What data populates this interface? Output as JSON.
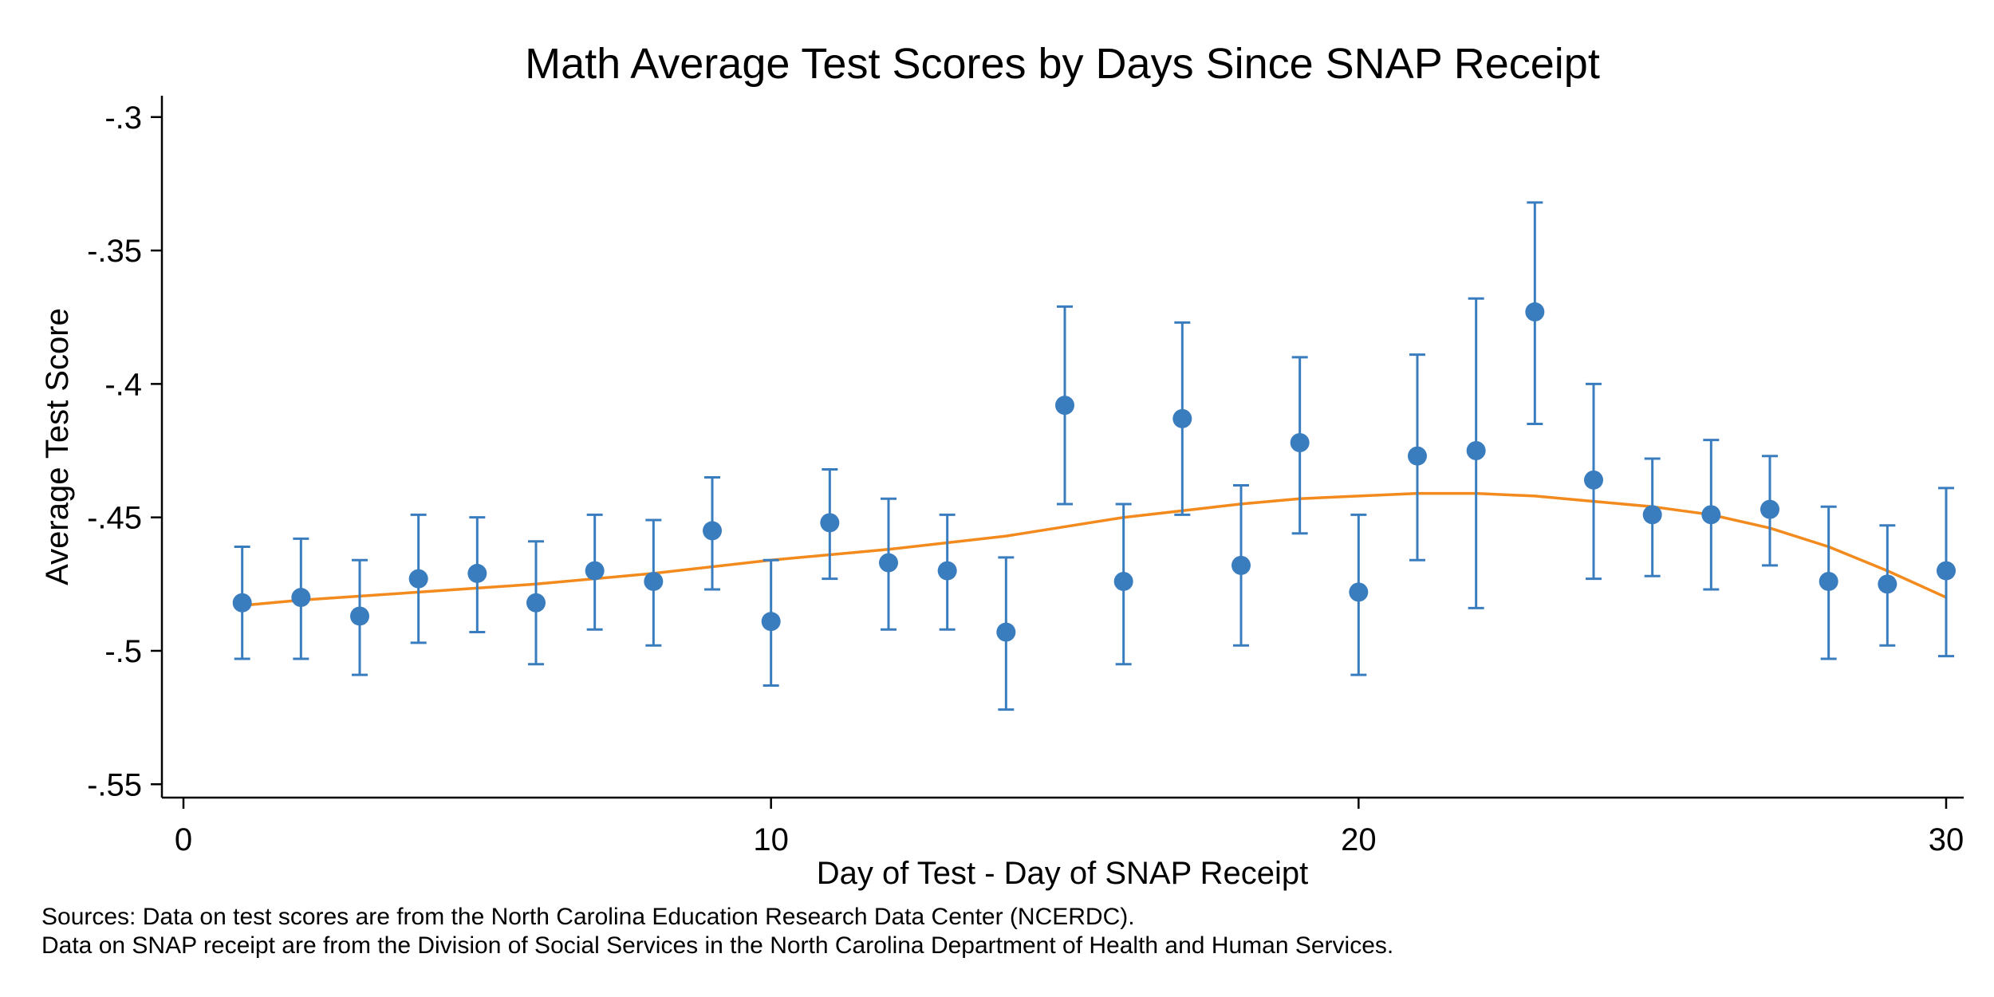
{
  "chart_data": {
    "type": "scatter",
    "title": "Math Average Test Scores by Days Since SNAP Receipt",
    "xlabel": "Day of Test - Day of SNAP Receipt",
    "ylabel": "Average Test Score",
    "xlim": [
      0,
      30
    ],
    "ylim": [
      -0.555,
      -0.292
    ],
    "xticks": [
      0,
      10,
      20,
      30
    ],
    "xtick_labels": [
      "0",
      "10",
      "20",
      "30"
    ],
    "yticks": [
      -0.3,
      -0.35,
      -0.4,
      -0.45,
      -0.5,
      -0.55
    ],
    "ytick_labels": [
      "-.3",
      "-.35",
      "-.4",
      "-.45",
      "-.5",
      "-.55"
    ],
    "grid": false,
    "colors": {
      "points": "#3a7dbf",
      "fit": "#f28a1e",
      "axis": "#000000"
    },
    "series": [
      {
        "name": "Average test score with confidence interval",
        "kind": "points_with_error_bars",
        "x": [
          1,
          2,
          3,
          4,
          5,
          6,
          7,
          8,
          9,
          10,
          11,
          12,
          13,
          14,
          15,
          16,
          17,
          18,
          19,
          20,
          21,
          22,
          23,
          24,
          25,
          26,
          27,
          28,
          29,
          30
        ],
        "y": [
          -0.482,
          -0.48,
          -0.487,
          -0.473,
          -0.471,
          -0.482,
          -0.47,
          -0.474,
          -0.455,
          -0.489,
          -0.452,
          -0.467,
          -0.47,
          -0.493,
          -0.408,
          -0.474,
          -0.413,
          -0.468,
          -0.422,
          -0.478,
          -0.427,
          -0.425,
          -0.373,
          -0.436,
          -0.449,
          -0.449,
          -0.447,
          -0.474,
          -0.475,
          -0.47
        ],
        "lower": [
          -0.503,
          -0.503,
          -0.509,
          -0.497,
          -0.493,
          -0.505,
          -0.492,
          -0.498,
          -0.477,
          -0.513,
          -0.473,
          -0.492,
          -0.492,
          -0.522,
          -0.445,
          -0.505,
          -0.449,
          -0.498,
          -0.456,
          -0.509,
          -0.466,
          -0.484,
          -0.415,
          -0.473,
          -0.472,
          -0.477,
          -0.468,
          -0.503,
          -0.498,
          -0.502
        ],
        "upper": [
          -0.461,
          -0.458,
          -0.466,
          -0.449,
          -0.45,
          -0.459,
          -0.449,
          -0.451,
          -0.435,
          -0.466,
          -0.432,
          -0.443,
          -0.449,
          -0.465,
          -0.371,
          -0.445,
          -0.377,
          -0.438,
          -0.39,
          -0.449,
          -0.389,
          -0.368,
          -0.332,
          -0.4,
          -0.428,
          -0.421,
          -0.427,
          -0.446,
          -0.453,
          -0.439
        ]
      },
      {
        "name": "Smoothed fit",
        "kind": "line",
        "x": [
          1,
          2,
          4,
          6,
          8,
          10,
          12,
          14,
          16,
          18,
          19,
          20,
          21,
          22,
          23,
          24,
          25,
          26,
          27,
          28,
          29,
          30
        ],
        "y": [
          -0.483,
          -0.481,
          -0.478,
          -0.475,
          -0.471,
          -0.466,
          -0.462,
          -0.457,
          -0.45,
          -0.445,
          -0.443,
          -0.442,
          -0.441,
          -0.441,
          -0.442,
          -0.444,
          -0.446,
          -0.449,
          -0.454,
          -0.461,
          -0.47,
          -0.48
        ]
      }
    ]
  },
  "notes": {
    "source_line_1": "Sources: Data on test scores are from the North Carolina Education Research Data Center (NCERDC).",
    "source_line_2": "Data on SNAP receipt are from the Division of Social Services in the North Carolina Department of Health and Human Services."
  }
}
